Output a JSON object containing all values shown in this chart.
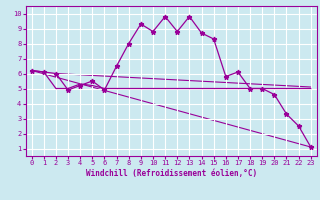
{
  "xlabel": "Windchill (Refroidissement éolien,°C)",
  "ylabel": "",
  "xlim": [
    -0.5,
    23.5
  ],
  "ylim": [
    0.5,
    10.5
  ],
  "xticks": [
    0,
    1,
    2,
    3,
    4,
    5,
    6,
    7,
    8,
    9,
    10,
    11,
    12,
    13,
    14,
    15,
    16,
    17,
    18,
    19,
    20,
    21,
    22,
    23
  ],
  "yticks": [
    1,
    2,
    3,
    4,
    5,
    6,
    7,
    8,
    9,
    10
  ],
  "bg_color": "#cce9f0",
  "line_color": "#990099",
  "grid_color": "#ffffff",
  "series1_x": [
    0,
    1,
    2,
    3,
    4,
    5,
    6,
    7,
    8,
    9,
    10,
    11,
    12,
    13,
    14,
    15,
    16,
    17,
    18,
    19,
    20,
    21,
    22,
    23
  ],
  "series1_y": [
    6.2,
    6.1,
    6.0,
    4.9,
    5.2,
    5.5,
    4.9,
    6.5,
    8.0,
    9.3,
    8.8,
    9.8,
    8.8,
    9.8,
    8.7,
    8.3,
    5.8,
    6.1,
    5.0,
    5.0,
    4.6,
    3.3,
    2.5,
    1.1
  ],
  "series2_x": [
    0,
    1,
    2,
    3,
    4,
    5,
    6,
    7,
    8,
    9,
    10,
    11,
    12,
    13,
    14,
    15,
    16,
    17,
    18,
    19,
    20,
    21,
    22,
    23
  ],
  "series2_y": [
    6.2,
    6.1,
    5.0,
    5.0,
    5.3,
    5.2,
    5.0,
    5.0,
    5.0,
    5.0,
    5.0,
    5.0,
    5.0,
    5.0,
    5.0,
    5.0,
    5.0,
    5.0,
    5.0,
    5.0,
    5.0,
    5.0,
    5.0,
    5.0
  ],
  "series3_x": [
    0,
    23
  ],
  "series3_y": [
    6.2,
    1.1
  ],
  "series4_x": [
    2,
    23
  ],
  "series4_y": [
    6.0,
    5.1
  ],
  "xlabel_fontsize": 5.5,
  "tick_fontsize": 5.0
}
